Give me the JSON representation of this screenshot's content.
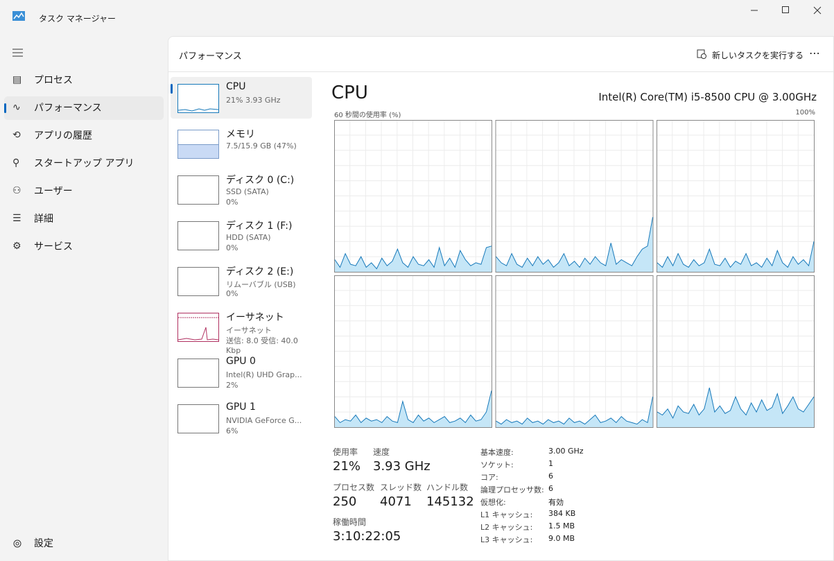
{
  "window": {
    "title": "タスク マネージャー"
  },
  "nav": {
    "items": [
      "プロセス",
      "パフォーマンス",
      "アプリの履歴",
      "スタートアップ アプリ",
      "ユーザー",
      "詳細",
      "サービス"
    ],
    "settings": "設定"
  },
  "header": {
    "title": "パフォーマンス",
    "new_task": "新しいタスクを実行する"
  },
  "devices": [
    {
      "name": "CPU",
      "lines": [
        "21%  3.93 GHz"
      ]
    },
    {
      "name": "メモリ",
      "lines": [
        "7.5/15.9 GB (47%)"
      ]
    },
    {
      "name": "ディスク 0 (C:)",
      "lines": [
        "SSD (SATA)",
        "0%"
      ]
    },
    {
      "name": "ディスク 1 (F:)",
      "lines": [
        "HDD (SATA)",
        "0%"
      ]
    },
    {
      "name": "ディスク 2 (E:)",
      "lines": [
        "リムーバブル (USB)",
        "0%"
      ]
    },
    {
      "name": "イーサネット",
      "lines": [
        "イーサネット",
        "送信: 8.0  受信: 40.0 Kbp"
      ]
    },
    {
      "name": "GPU 0",
      "lines": [
        "Intel(R) UHD Grap...",
        "2%"
      ]
    },
    {
      "name": "GPU 1",
      "lines": [
        "NVIDIA GeForce G...",
        "6%"
      ]
    }
  ],
  "cpu": {
    "title": "CPU",
    "model": "Intel(R) Core(TM) i5-8500 CPU @ 3.00GHz",
    "graph_label": "60 秒間の使用率 (%)",
    "graph_max": "100%",
    "ylim": [
      0,
      100
    ],
    "cores": [
      [
        8,
        3,
        12,
        5,
        4,
        10,
        3,
        6,
        2,
        9,
        4,
        7,
        15,
        6,
        3,
        10,
        5,
        4,
        8,
        3,
        16,
        4,
        9,
        3,
        14,
        8,
        4,
        6,
        5,
        16,
        17
      ],
      [
        10,
        6,
        4,
        12,
        5,
        3,
        9,
        4,
        10,
        5,
        8,
        3,
        6,
        12,
        4,
        7,
        3,
        9,
        5,
        10,
        6,
        4,
        19,
        5,
        8,
        6,
        4,
        10,
        15,
        17,
        36
      ],
      [
        6,
        3,
        10,
        4,
        12,
        5,
        3,
        8,
        4,
        6,
        15,
        5,
        4,
        9,
        3,
        7,
        5,
        12,
        4,
        6,
        3,
        9,
        4,
        14,
        6,
        3,
        10,
        5,
        8,
        4,
        20
      ],
      [
        7,
        3,
        5,
        4,
        8,
        3,
        6,
        4,
        5,
        3,
        7,
        4,
        3,
        17,
        5,
        3,
        8,
        4,
        6,
        3,
        5,
        7,
        3,
        4,
        6,
        3,
        8,
        4,
        5,
        10,
        24
      ],
      [
        4,
        2,
        5,
        3,
        4,
        2,
        6,
        3,
        4,
        2,
        5,
        3,
        4,
        2,
        6,
        3,
        4,
        2,
        5,
        8,
        3,
        4,
        6,
        3,
        7,
        4,
        3,
        2,
        5,
        3,
        20
      ],
      [
        10,
        8,
        12,
        6,
        14,
        10,
        9,
        15,
        8,
        12,
        26,
        10,
        14,
        9,
        11,
        20,
        12,
        8,
        16,
        10,
        18,
        11,
        13,
        22,
        9,
        14,
        20,
        12,
        10,
        15,
        20
      ]
    ],
    "stats": [
      [
        {
          "label": "使用率",
          "value": "21%"
        },
        {
          "label": "速度",
          "value": "3.93 GHz"
        }
      ],
      [
        {
          "label": "プロセス数",
          "value": "250"
        },
        {
          "label": "スレッド数",
          "value": "4071"
        },
        {
          "label": "ハンドル数",
          "value": "145132"
        }
      ],
      [
        {
          "label": "稼働時間",
          "value": "3:10:22:05"
        }
      ]
    ],
    "details": [
      [
        "基本速度:",
        "3.00 GHz"
      ],
      [
        "ソケット:",
        "1"
      ],
      [
        "コア:",
        "6"
      ],
      [
        "論理プロセッサ数:",
        "6"
      ],
      [
        "仮想化:",
        "有効"
      ],
      [
        "L1 キャッシュ:",
        "384 KB"
      ],
      [
        "L2 キャッシュ:",
        "1.5 MB"
      ],
      [
        "L3 キャッシュ:",
        "9.0 MB"
      ]
    ]
  }
}
